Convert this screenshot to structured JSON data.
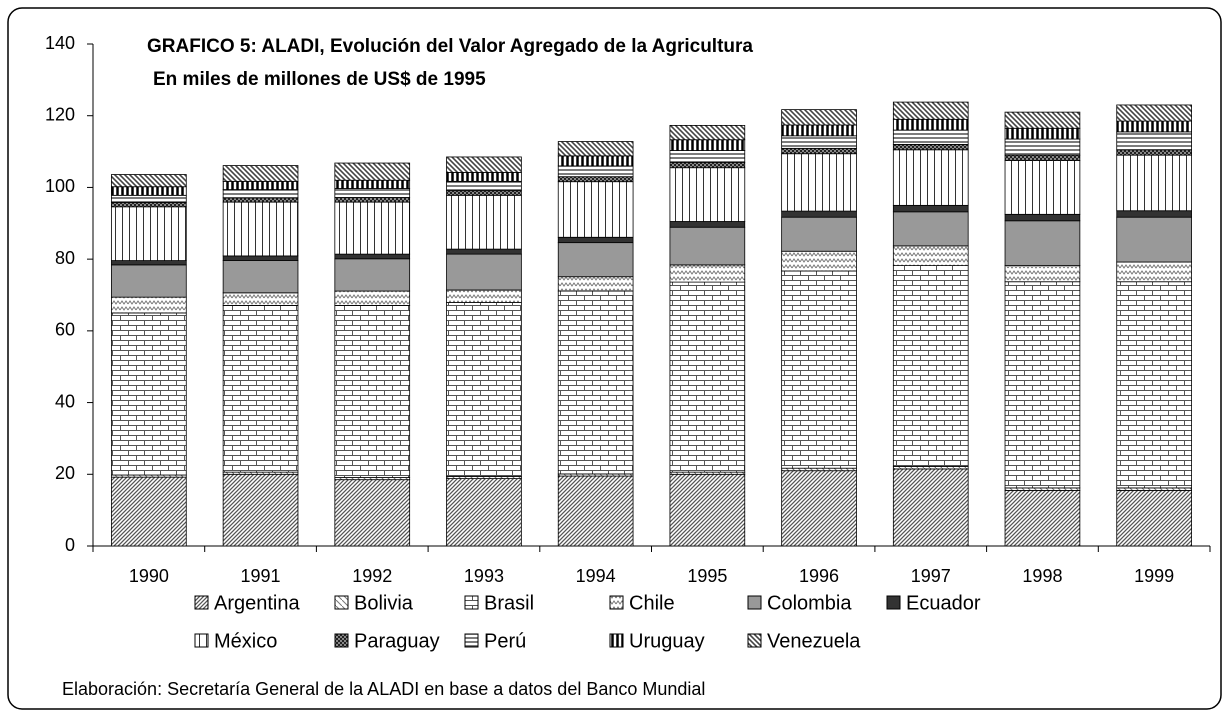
{
  "chart_data": {
    "type": "stacked_bar",
    "title": "GRAFICO 5: ALADI, Evolución del Valor Agregado de la Agricultura",
    "subtitle": "En miles de millones de US$ de 1995",
    "annotation": "Elaboración: Secretaría General de la ALADI en base a datos del Banco Mundial",
    "categories": [
      "1990",
      "1991",
      "1992",
      "1993",
      "1994",
      "1995",
      "1996",
      "1997",
      "1998",
      "1999"
    ],
    "ylim": [
      0,
      140
    ],
    "yticks": [
      0,
      20,
      40,
      60,
      80,
      100,
      120,
      140
    ],
    "grid": false,
    "series": [
      {
        "name": "Argentina",
        "color": "#555555",
        "values": [
          19.2,
          20,
          18.5,
          18.8,
          19.5,
          20,
          21,
          21.5,
          15.5,
          15.5
        ]
      },
      {
        "name": "Bolivia",
        "color": "#777777",
        "values": [
          0.6,
          0.6,
          0.6,
          0.6,
          0.6,
          0.6,
          0.7,
          0.7,
          0.7,
          0.7
        ]
      },
      {
        "name": "Brasil",
        "color": "#555555",
        "values": [
          45.2,
          46.5,
          48,
          48.5,
          51,
          53,
          55,
          56,
          57.5,
          57.5
        ]
      },
      {
        "name": "Chile",
        "color": "#777777",
        "values": [
          4.4,
          3.5,
          4,
          3.5,
          4,
          4.8,
          5.5,
          5.5,
          4.5,
          5.5
        ]
      },
      {
        "name": "Colombia",
        "color": "#999999",
        "values": [
          9,
          9,
          9,
          10,
          9.5,
          10.5,
          9.5,
          9.5,
          12.5,
          12.5
        ]
      },
      {
        "name": "Ecuador",
        "color": "#333333",
        "values": [
          1.2,
          1.3,
          1.3,
          1.4,
          1.5,
          1.6,
          1.7,
          1.8,
          1.8,
          1.8
        ]
      },
      {
        "name": "México",
        "color": "#333333",
        "values": [
          15,
          15,
          14.5,
          15,
          15.5,
          15,
          16,
          15.5,
          15,
          15.5
        ]
      },
      {
        "name": "Paraguay",
        "color": "#222222",
        "values": [
          1.2,
          1.2,
          1.3,
          1.3,
          1.4,
          1.5,
          1.5,
          1.5,
          1.5,
          1.5
        ]
      },
      {
        "name": "Perú",
        "color": "#444444",
        "values": [
          2,
          2.3,
          2.5,
          2.6,
          3,
          3.3,
          3.5,
          4,
          4.5,
          5
        ]
      },
      {
        "name": "Uruguay",
        "color": "#000000",
        "values": [
          2.4,
          2.3,
          2.3,
          2.5,
          2.8,
          3,
          3,
          3,
          3,
          3
        ]
      },
      {
        "name": "Venezuela",
        "color": "#444444",
        "values": [
          3.4,
          4.4,
          4.8,
          4.3,
          4,
          4,
          4.3,
          4.8,
          4.5,
          4.5
        ]
      }
    ]
  }
}
